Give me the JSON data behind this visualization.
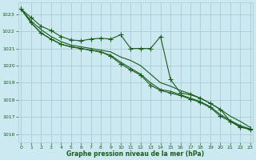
{
  "title": "Graphe pression niveau de la mer (hPa)",
  "bg_color": "#cce8f0",
  "grid_color": "#aaccd8",
  "line_color": "#1a5c1a",
  "xlim": [
    -0.3,
    23.3
  ],
  "ylim": [
    1015.5,
    1023.7
  ],
  "yticks": [
    1016,
    1017,
    1018,
    1019,
    1020,
    1021,
    1022,
    1023
  ],
  "xticks": [
    0,
    1,
    2,
    3,
    4,
    5,
    6,
    7,
    8,
    9,
    10,
    11,
    12,
    13,
    14,
    15,
    16,
    17,
    18,
    19,
    20,
    21,
    22,
    23
  ],
  "series1_marked": [
    1023.3,
    1022.8,
    1022.3,
    1022.05,
    1021.7,
    1021.5,
    1021.45,
    1021.55,
    1021.6,
    1021.55,
    1021.8,
    1021.0,
    1021.0,
    1021.0,
    1021.7,
    1019.2,
    1018.4,
    1018.3,
    1018.1,
    1017.8,
    1017.45,
    1016.75,
    1016.4,
    1016.3
  ],
  "series2_plain": [
    1023.3,
    1022.6,
    1022.1,
    1021.7,
    1021.4,
    1021.2,
    1021.1,
    1021.0,
    1020.9,
    1020.8,
    1020.5,
    1020.3,
    1020.0,
    1019.5,
    1019.0,
    1018.8,
    1018.55,
    1018.35,
    1018.1,
    1017.8,
    1017.45,
    1017.05,
    1016.75,
    1016.4
  ],
  "series3_plain": [
    1023.3,
    1022.5,
    1021.9,
    1021.55,
    1021.25,
    1021.1,
    1021.0,
    1020.9,
    1020.8,
    1020.6,
    1020.2,
    1019.85,
    1019.5,
    1019.0,
    1018.6,
    1018.5,
    1018.3,
    1018.1,
    1017.9,
    1017.6,
    1017.15,
    1016.8,
    1016.5,
    1016.3
  ],
  "series4_marked": [
    1023.3,
    1022.5,
    1021.9,
    1021.55,
    1021.25,
    1021.1,
    1021.0,
    1020.9,
    1020.8,
    1020.55,
    1020.1,
    1019.75,
    1019.45,
    1018.85,
    1018.55,
    1018.4,
    1018.25,
    1018.05,
    1017.85,
    1017.55,
    1017.05,
    1016.75,
    1016.45,
    1016.25
  ]
}
